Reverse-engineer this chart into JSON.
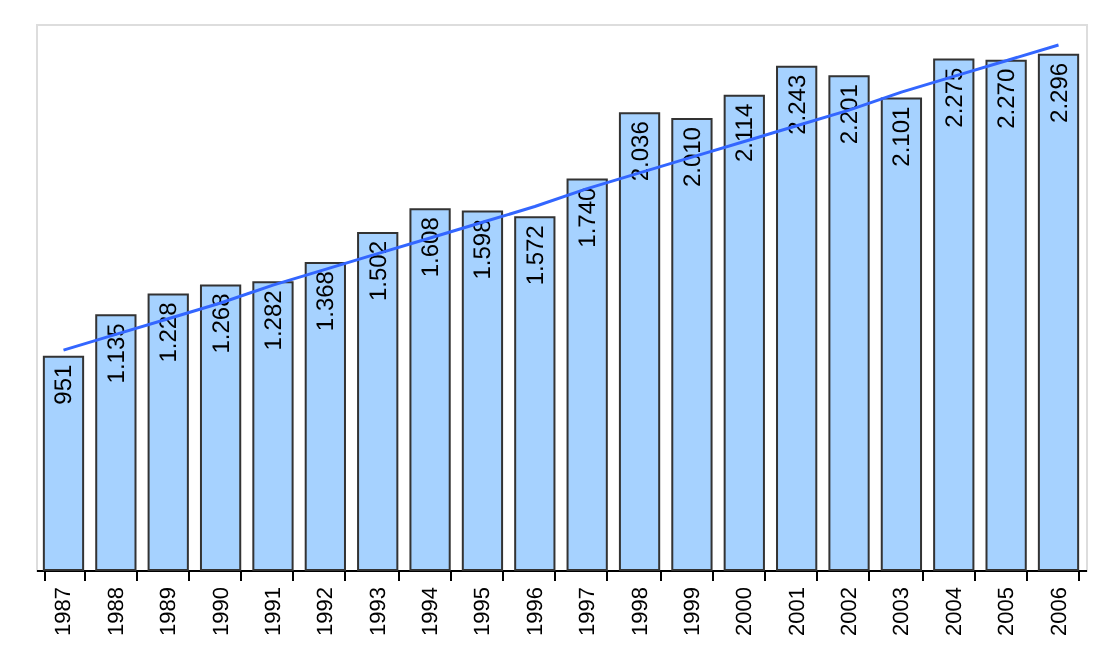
{
  "chart_data": {
    "type": "bar",
    "categories": [
      "1987",
      "1988",
      "1989",
      "1990",
      "1991",
      "1992",
      "1993",
      "1994",
      "1995",
      "1996",
      "1997",
      "1998",
      "1999",
      "2000",
      "2001",
      "2002",
      "2003",
      "2004",
      "2005",
      "2006"
    ],
    "series": [
      {
        "color": "#a6d2ff",
        "values": [
          951,
          1135,
          1228,
          1268,
          1282,
          1368,
          1502,
          1608,
          1598,
          1572,
          1740,
          2036,
          2010,
          2114,
          2243,
          2201,
          2101,
          2275,
          2270,
          2296
        ],
        "value_labels": [
          "951",
          "1.135",
          "1.228",
          "1.268",
          "1.282",
          "1.368",
          "1.502",
          "1.608",
          "1.598",
          "1.572",
          "1.740",
          "2.036",
          "2.010",
          "2.114",
          "2.243",
          "2.201",
          "2.101",
          "2.275",
          "2.270",
          "2.296"
        ]
      },
      {
        "type": "line",
        "color": "#3366ff",
        "values": [
          980,
          1050,
          1120,
          1190,
          1270,
          1340,
          1410,
          1480,
          1550,
          1620,
          1700,
          1770,
          1840,
          1910,
          1980,
          2050,
          2130,
          2200,
          2270,
          2340
        ]
      }
    ],
    "tick_labels": "x"
  }
}
